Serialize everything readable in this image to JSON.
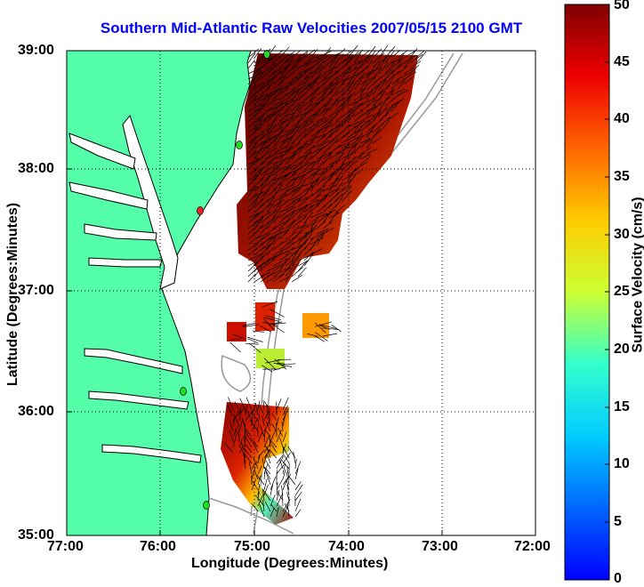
{
  "title": "Southern Mid-Atlantic Raw Velocities 2007/05/15 2100 GMT",
  "xlabel": "Longitude (Degrees:Minutes)",
  "ylabel": "Latitude (Degrees:Minutes)",
  "colorbar": {
    "label": "Surface Velocity (cm/s)",
    "ticks": [
      "0",
      "5",
      "10",
      "15",
      "20",
      "25",
      "30",
      "35",
      "40",
      "45",
      "50"
    ],
    "range": [
      0,
      50
    ],
    "colormap": "jet"
  },
  "x_ticks": [
    "77:00",
    "76:00",
    "75:00",
    "74:00",
    "73:00",
    "72:00"
  ],
  "y_ticks": [
    "39:00",
    "38:00",
    "37:00",
    "36:00",
    "35:00"
  ],
  "colors": {
    "land": "#55ffaa",
    "water": "#ffffff",
    "coastline": "#000000",
    "bathymetry": "#999999",
    "grid": "#000000",
    "station_active": "#22dd22",
    "station_inactive": "#ee2222",
    "title": "#0000ff"
  },
  "stations": [
    {
      "lon": -74.85,
      "lat": 38.95,
      "status": "active"
    },
    {
      "lon": -75.15,
      "lat": 38.2,
      "status": "active"
    },
    {
      "lon": -75.5,
      "lat": 37.7,
      "status": "inactive"
    },
    {
      "lon": -75.7,
      "lat": 36.2,
      "status": "active"
    },
    {
      "lon": -75.5,
      "lat": 35.3,
      "status": "active"
    }
  ],
  "velocity_patches": [
    {
      "region": "mid-atlantic-bight",
      "speed_range_cms": [
        25,
        50
      ],
      "dominant": "dark-red"
    },
    {
      "region": "cape-hatteras",
      "speed_range_cms": [
        15,
        50
      ],
      "dominant": "red"
    },
    {
      "region": "offshore-blobs",
      "speed_range_cms": [
        20,
        45
      ],
      "dominant": "orange"
    }
  ]
}
